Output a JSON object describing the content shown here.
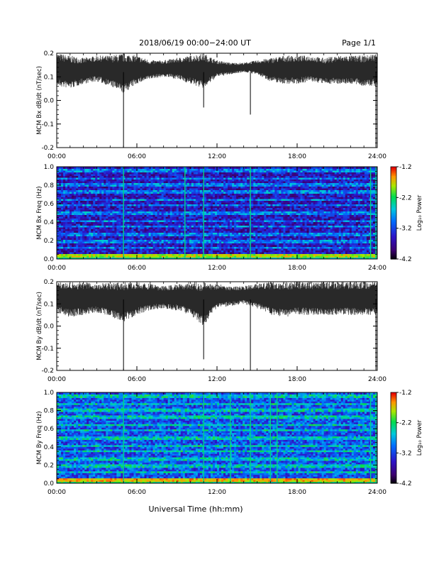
{
  "header": {
    "title": "2018/06/19   00:00−24:00 UT",
    "page_label": "Page 1/1"
  },
  "xlabel": "Universal Time (hh:mm)",
  "chart_data": [
    {
      "type": "line",
      "ylabel": "MCM Bx dB/dt (nT/sec)",
      "ylim": [
        -0.2,
        0.2
      ],
      "yticks": [
        "-0.2",
        "-0.1",
        "0.0",
        "0.1",
        "0.2"
      ],
      "xlim_hours": [
        0,
        24
      ],
      "xticks": [
        "00:00",
        "06:00",
        "12:00",
        "18:00",
        "24:00"
      ],
      "x_hours": [
        0,
        1,
        2,
        3,
        4,
        5,
        6,
        7,
        8,
        9,
        10,
        11,
        12,
        13,
        14,
        15,
        16,
        17,
        18,
        19,
        20,
        21,
        22,
        23,
        24
      ],
      "envelope_upper": [
        0.2,
        0.19,
        0.18,
        0.19,
        0.19,
        0.2,
        0.19,
        0.17,
        0.17,
        0.18,
        0.19,
        0.2,
        0.17,
        0.16,
        0.16,
        0.17,
        0.18,
        0.19,
        0.19,
        0.19,
        0.18,
        0.19,
        0.19,
        0.19,
        0.2
      ],
      "envelope_lower": [
        0.06,
        0.05,
        0.07,
        0.08,
        0.06,
        0.03,
        0.07,
        0.09,
        0.1,
        0.09,
        0.07,
        0.05,
        0.1,
        0.11,
        0.12,
        0.11,
        0.08,
        0.07,
        0.07,
        0.08,
        0.07,
        0.07,
        0.07,
        0.06,
        0.06
      ],
      "spikes": [
        {
          "x_hours": 5.0,
          "y": -0.2
        },
        {
          "x_hours": 11.0,
          "y": -0.03
        },
        {
          "x_hours": 14.5,
          "y": -0.06
        },
        {
          "x_hours": 23.9,
          "y": -0.2
        }
      ],
      "grid": false
    },
    {
      "type": "heatmap",
      "ylabel": "MCM Bx Freq (Hz)",
      "ylim": [
        0.0,
        1.0
      ],
      "yticks": [
        "0.0",
        "0.2",
        "0.4",
        "0.6",
        "0.8",
        "1.0"
      ],
      "xlim_hours": [
        0,
        24
      ],
      "xticks": [
        "00:00",
        "06:00",
        "12:00",
        "18:00",
        "24:00"
      ],
      "colorbar": {
        "label": "Log₁₀ Power",
        "range": [
          -4.2,
          -1.2
        ],
        "ticks": [
          "-1.2",
          "-2.2",
          "-3.2",
          "-4.2"
        ]
      },
      "harmonic_bands_hz": [
        0.04,
        0.12,
        0.19,
        0.27,
        0.35,
        0.42,
        0.5,
        0.58,
        0.65,
        0.73,
        0.81,
        0.88,
        0.96
      ],
      "vertical_lines_hours": [
        5.0,
        9.6,
        11.0,
        14.5,
        23.5,
        23.9
      ],
      "background_level": -3.5,
      "low_freq_level": -2.4
    },
    {
      "type": "line",
      "ylabel": "MCM By dB/dt (nT/sec)",
      "ylim": [
        -0.2,
        0.2
      ],
      "yticks": [
        "-0.2",
        "-0.1",
        "0.0",
        "0.1",
        "0.2"
      ],
      "xlim_hours": [
        0,
        24
      ],
      "xticks": [
        "00:00",
        "06:00",
        "12:00",
        "18:00",
        "24:00"
      ],
      "x_hours": [
        0,
        1,
        2,
        3,
        4,
        5,
        6,
        7,
        8,
        9,
        10,
        11,
        12,
        13,
        14,
        15,
        16,
        17,
        18,
        19,
        20,
        21,
        22,
        23,
        24
      ],
      "envelope_upper": [
        0.2,
        0.2,
        0.2,
        0.19,
        0.2,
        0.2,
        0.2,
        0.19,
        0.18,
        0.19,
        0.2,
        0.2,
        0.19,
        0.18,
        0.18,
        0.19,
        0.2,
        0.2,
        0.2,
        0.2,
        0.2,
        0.2,
        0.2,
        0.2,
        0.2
      ],
      "envelope_lower": [
        0.06,
        0.04,
        0.05,
        0.06,
        0.04,
        0.02,
        0.05,
        0.07,
        0.08,
        0.07,
        0.05,
        0.0,
        0.08,
        0.09,
        0.1,
        0.08,
        0.05,
        0.04,
        0.05,
        0.05,
        0.05,
        0.05,
        0.05,
        0.05,
        0.05
      ],
      "spikes": [
        {
          "x_hours": 5.0,
          "y": -0.2
        },
        {
          "x_hours": 11.0,
          "y": -0.15
        },
        {
          "x_hours": 14.5,
          "y": -0.2
        },
        {
          "x_hours": 23.9,
          "y": -0.2
        }
      ],
      "grid": false
    },
    {
      "type": "heatmap",
      "ylabel": "MCM By Freq (Hz)",
      "ylim": [
        0.0,
        1.0
      ],
      "yticks": [
        "0.0",
        "0.2",
        "0.4",
        "0.6",
        "0.8",
        "1.0"
      ],
      "xlim_hours": [
        0,
        24
      ],
      "xticks": [
        "00:00",
        "06:00",
        "12:00",
        "18:00",
        "24:00"
      ],
      "colorbar": {
        "label": "Log₁₀ Power",
        "range": [
          -4.2,
          -1.2
        ],
        "ticks": [
          "-1.2",
          "-2.2",
          "-3.2",
          "-4.2"
        ]
      },
      "harmonic_bands_hz": [
        0.04,
        0.12,
        0.19,
        0.27,
        0.35,
        0.42,
        0.5,
        0.58,
        0.65,
        0.73,
        0.81,
        0.88,
        0.96
      ],
      "vertical_lines_hours": [
        5.0,
        11.0,
        13.0,
        14.5,
        16.0,
        16.5,
        23.5,
        23.9
      ],
      "background_level": -3.1,
      "low_freq_level": -2.2
    }
  ]
}
